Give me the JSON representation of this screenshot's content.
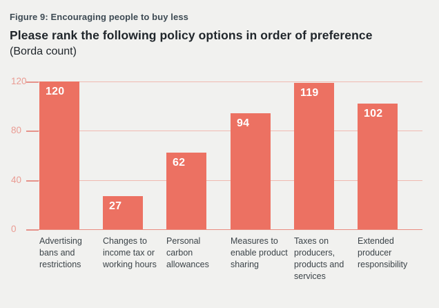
{
  "header": {
    "figure_label": "Figure 9: Encouraging people to buy less",
    "title": "Please rank the following policy options in order of preference",
    "subtitle": "(Borda count)"
  },
  "colors": {
    "background": "#F1F1EF",
    "bar": "#EC7162",
    "gridline": "#F0B9B0",
    "baseline": "#E98D80",
    "tick": "#E5928A",
    "axis_label_text": "#EA9C93",
    "figure_label_text": "#3D4A53",
    "title_text": "#20262B",
    "category_text": "#3B4348",
    "bar_value_text": "#FFFFFF"
  },
  "chart_data": {
    "type": "bar",
    "title": "Please rank the following policy options in order of preference (Borda count)",
    "figure_label": "Figure 9: Encouraging people to buy less",
    "categories": [
      "Advertising bans and restrictions",
      "Changes to income tax or working hours",
      "Personal carbon allowances",
      "Measures to enable product sharing",
      "Taxes on producers, products and services",
      "Extended producer responsibility"
    ],
    "category_lines": [
      "Advertising\nbans and\nrestrictions",
      "Changes to\nincome tax or\nworking hours",
      "Personal\ncarbon\nallowances",
      "Measures to\nenable product\nsharing",
      "Taxes on\nproducers,\nproducts and\nservices",
      "Extended\nproducer\nresponsibility"
    ],
    "values": [
      120,
      27,
      62,
      94,
      119,
      102
    ],
    "xlabel": "",
    "ylabel": "",
    "ylim": [
      0,
      120
    ],
    "yticks": [
      0,
      40,
      80,
      120
    ],
    "grid": true,
    "legend": "none",
    "value_labels": "inside-top-left"
  }
}
